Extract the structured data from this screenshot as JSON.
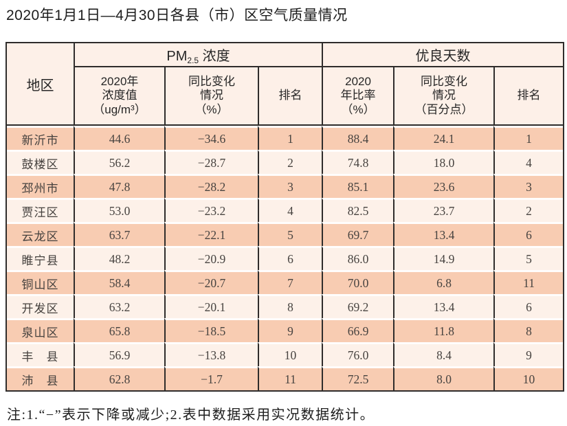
{
  "page": {
    "title": "2020年1月1日—4月30日各县（市）区空气质量情况",
    "footnote": "注:1.“−”表示下降或减少;2.表中数据采用实况数据统计。"
  },
  "colors": {
    "stripe_dark": "#f8ccb2",
    "stripe_light": "#fdf1e9",
    "header_bg": "#fdf0e8",
    "border": "#2e2c2b"
  },
  "table": {
    "column_keys": [
      "region",
      "pm_value",
      "pm_change",
      "pm_rank",
      "good_rate",
      "good_change",
      "good_rank"
    ],
    "header": {
      "region": "地区",
      "pm_prefix": "PM",
      "pm_sub": "2.5",
      "pm_suffix": " 浓度",
      "good_group": "优良天数",
      "pm_value": "2020年\n浓度值\n（ug/m³）",
      "pm_change": "同比变化\n情况\n（%）",
      "pm_rank": "排名",
      "good_rate": "2020\n年比率\n（%）",
      "good_change": "同比变化\n情况\n（百分点）",
      "good_rank": "排名"
    },
    "rows": [
      {
        "region": "新沂市",
        "pm_value": "44.6",
        "pm_change": "−34.6",
        "pm_rank": "1",
        "good_rate": "88.4",
        "good_change": "24.1",
        "good_rank": "1"
      },
      {
        "region": "鼓楼区",
        "pm_value": "56.2",
        "pm_change": "−28.7",
        "pm_rank": "2",
        "good_rate": "74.8",
        "good_change": "18.0",
        "good_rank": "4"
      },
      {
        "region": "邳州市",
        "pm_value": "47.8",
        "pm_change": "−28.2",
        "pm_rank": "3",
        "good_rate": "85.1",
        "good_change": "23.6",
        "good_rank": "3"
      },
      {
        "region": "贾汪区",
        "pm_value": "53.0",
        "pm_change": "−23.2",
        "pm_rank": "4",
        "good_rate": "82.5",
        "good_change": "23.7",
        "good_rank": "2"
      },
      {
        "region": "云龙区",
        "pm_value": "63.7",
        "pm_change": "−22.1",
        "pm_rank": "5",
        "good_rate": "69.7",
        "good_change": "13.4",
        "good_rank": "6"
      },
      {
        "region": "睢宁县",
        "pm_value": "48.2",
        "pm_change": "−20.9",
        "pm_rank": "6",
        "good_rate": "86.0",
        "good_change": "14.9",
        "good_rank": "5"
      },
      {
        "region": "铜山区",
        "pm_value": "58.4",
        "pm_change": "−20.7",
        "pm_rank": "7",
        "good_rate": "70.0",
        "good_change": "6.8",
        "good_rank": "11"
      },
      {
        "region": "开发区",
        "pm_value": "63.2",
        "pm_change": "−20.1",
        "pm_rank": "8",
        "good_rate": "69.2",
        "good_change": "13.4",
        "good_rank": "6"
      },
      {
        "region": "泉山区",
        "pm_value": "65.8",
        "pm_change": "−18.5",
        "pm_rank": "9",
        "good_rate": "66.9",
        "good_change": "11.8",
        "good_rank": "8"
      },
      {
        "region": "丰　县",
        "pm_value": "56.9",
        "pm_change": "−13.8",
        "pm_rank": "10",
        "good_rate": "76.0",
        "good_change": "8.4",
        "good_rank": "9"
      },
      {
        "region": "沛　县",
        "pm_value": "62.8",
        "pm_change": "−1.7",
        "pm_rank": "11",
        "good_rate": "72.5",
        "good_change": "8.0",
        "good_rank": "10"
      }
    ]
  }
}
